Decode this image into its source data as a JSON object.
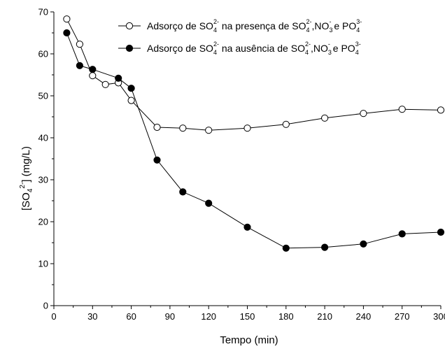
{
  "chart_data": {
    "type": "line",
    "xlabel": "Tempo (min)",
    "ylabel_parts": {
      "open": "[SO",
      "sub": "4",
      "sup": "2-",
      "close": "] (mg/L)"
    },
    "xlim": [
      0,
      300
    ],
    "ylim": [
      0,
      70
    ],
    "xticks": [
      "0",
      "30",
      "60",
      "90",
      "120",
      "150",
      "180",
      "210",
      "240",
      "270",
      "300"
    ],
    "yticks": [
      "0",
      "10",
      "20",
      "30",
      "40",
      "50",
      "60",
      "70"
    ],
    "grid": false,
    "legend_position": "top-right",
    "series": [
      {
        "name": "Adsorçao de SO42- na presença de SO42-, NO3- e PO43-",
        "legend": {
          "a": "Adsorç",
          "a2": "o de SO",
          "sub1": "4",
          "sup1": "2-",
          "b": " na presença de SO",
          "sub2": "4",
          "sup2": "2-",
          "c": ",NO",
          "sub3": "3",
          "sup3": "-",
          "d": " e PO",
          "sub4": "4",
          "sup4": "3-"
        },
        "marker": "open-circle",
        "color": "#000000",
        "x": [
          10,
          20,
          30,
          40,
          50,
          60,
          80,
          100,
          120,
          150,
          180,
          210,
          240,
          270,
          300
        ],
        "y": [
          68.3,
          62.3,
          54.8,
          52.7,
          53.1,
          48.9,
          42.5,
          42.3,
          41.8,
          42.3,
          43.2,
          44.7,
          45.8,
          46.8,
          46.6
        ]
      },
      {
        "name": "Adsorçao de SO42- na ausência de SO42-, NO3- e PO43-",
        "legend": {
          "a": "Adsorç",
          "a2": "o de SO",
          "sub1": "4",
          "sup1": "2-",
          "b": " na ausência de SO",
          "sub2": "4",
          "sup2": "2-",
          "c": ",NO",
          "sub3": "3",
          "sup3": "-",
          "d": " e PO",
          "sub4": "4",
          "sup4": "3-"
        },
        "marker": "filled-circle",
        "color": "#000000",
        "x": [
          10,
          20,
          30,
          50,
          60,
          80,
          100,
          120,
          150,
          180,
          210,
          240,
          270,
          300
        ],
        "y": [
          65.0,
          57.2,
          56.3,
          54.2,
          51.8,
          34.7,
          27.1,
          24.4,
          18.7,
          13.7,
          13.9,
          14.7,
          17.1,
          17.5
        ]
      }
    ]
  }
}
